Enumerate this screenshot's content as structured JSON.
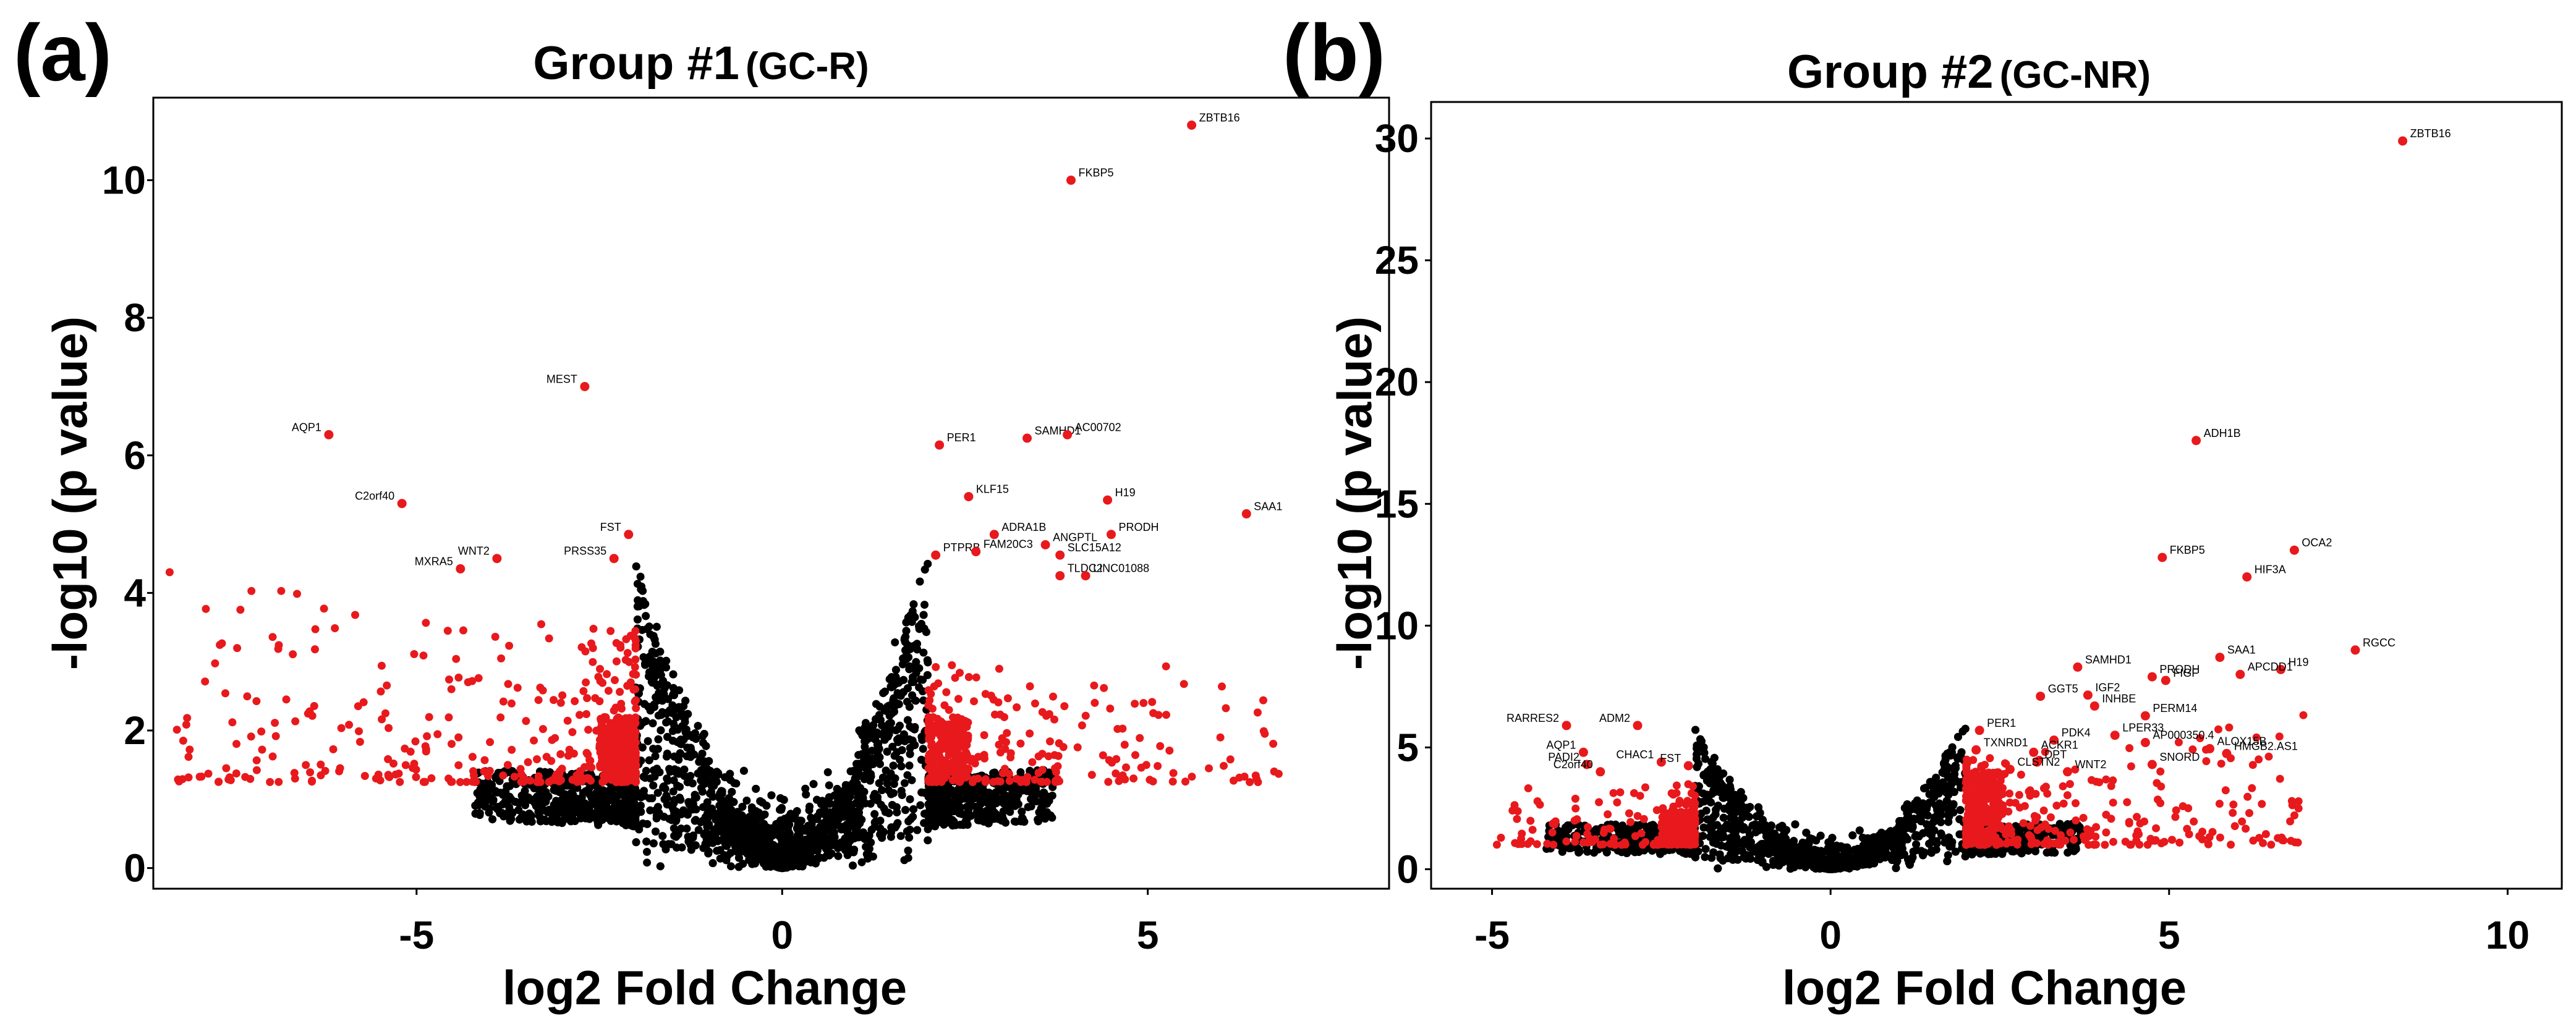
{
  "chart_data": [
    {
      "type": "scatter",
      "panel_label": "(a)",
      "title": "Group #1",
      "title_suffix": "(GC-R)",
      "xlabel": "log2 Fold Change",
      "ylabel": "-log10 (p value)",
      "xlim": [
        -8.6,
        8.3
      ],
      "ylim": [
        -0.3,
        11.2
      ],
      "xticks": [
        -5,
        0,
        5
      ],
      "yticks": [
        0,
        2,
        4,
        6,
        8,
        10
      ],
      "grid": false,
      "colors": {
        "significant": "#e8191c",
        "not_significant": "#000000"
      },
      "fc_threshold": 2,
      "labeled_genes": [
        {
          "label": "ZBTB16",
          "x": 5.6,
          "y": 10.8
        },
        {
          "label": "FKBP5",
          "x": 3.95,
          "y": 10.0
        },
        {
          "label": "MEST",
          "x": -2.7,
          "y": 7.0
        },
        {
          "label": "AQP1",
          "x": -6.2,
          "y": 6.3
        },
        {
          "label": "C2orf40",
          "x": -5.2,
          "y": 5.3
        },
        {
          "label": "PER1",
          "x": 2.15,
          "y": 6.15
        },
        {
          "label": "SAMHD1",
          "x": 3.35,
          "y": 6.25
        },
        {
          "label": "AC00702",
          "x": 3.9,
          "y": 6.3
        },
        {
          "label": "KLF15",
          "x": 2.55,
          "y": 5.4
        },
        {
          "label": "H19",
          "x": 4.45,
          "y": 5.35
        },
        {
          "label": "SAA1",
          "x": 6.35,
          "y": 5.15
        },
        {
          "label": "FST",
          "x": -2.1,
          "y": 4.85
        },
        {
          "label": "PRODH",
          "x": 4.5,
          "y": 4.85
        },
        {
          "label": "ADRA1B",
          "x": 2.9,
          "y": 4.85
        },
        {
          "label": "WNT2",
          "x": -3.9,
          "y": 4.5
        },
        {
          "label": "MXRA5",
          "x": -4.4,
          "y": 4.35
        },
        {
          "label": "PRSS35",
          "x": -2.3,
          "y": 4.5
        },
        {
          "label": "PTPRB",
          "x": 2.1,
          "y": 4.55
        },
        {
          "label": "FAM20C3",
          "x": 2.65,
          "y": 4.6
        },
        {
          "label": "ANGPTL",
          "x": 3.6,
          "y": 4.7
        },
        {
          "label": "SLC15A12",
          "x": 3.8,
          "y": 4.55
        },
        {
          "label": "TLDC2",
          "x": 3.8,
          "y": 4.25
        },
        {
          "label": "LINC01088",
          "x": 4.15,
          "y": 4.25
        }
      ]
    },
    {
      "type": "scatter",
      "panel_label": "(b)",
      "title": "Group #2",
      "title_suffix": "(GC-NR)",
      "xlabel": "log2 Fold Change",
      "ylabel": "-log10 (p value)",
      "xlim": [
        -5.9,
        10.8
      ],
      "ylim": [
        -0.8,
        31.5
      ],
      "xticks": [
        -5,
        0,
        5,
        10
      ],
      "yticks": [
        0,
        5,
        10,
        15,
        20,
        25,
        30
      ],
      "grid": false,
      "colors": {
        "significant": "#e8191c",
        "not_significant": "#000000"
      },
      "fc_threshold": 2,
      "labeled_genes": [
        {
          "label": "ZBTB16",
          "x": 8.45,
          "y": 29.9
        },
        {
          "label": "ADH1B",
          "x": 5.4,
          "y": 17.6
        },
        {
          "label": "OCA2",
          "x": 6.85,
          "y": 13.1
        },
        {
          "label": "FKBP5",
          "x": 4.9,
          "y": 12.8
        },
        {
          "label": "HIF3A",
          "x": 6.15,
          "y": 12.0
        },
        {
          "label": "RGCC",
          "x": 7.75,
          "y": 9.0
        },
        {
          "label": "SAA1",
          "x": 5.75,
          "y": 8.7
        },
        {
          "label": "H19",
          "x": 6.65,
          "y": 8.2
        },
        {
          "label": "APCDD1",
          "x": 6.05,
          "y": 8.0
        },
        {
          "label": "SAMHD1",
          "x": 3.65,
          "y": 8.3
        },
        {
          "label": "PRODH",
          "x": 4.75,
          "y": 7.9
        },
        {
          "label": "FIGF",
          "x": 4.95,
          "y": 7.75
        },
        {
          "label": "GGT5",
          "x": 3.1,
          "y": 7.1
        },
        {
          "label": "IGF2",
          "x": 3.8,
          "y": 7.15
        },
        {
          "label": "INHBE",
          "x": 3.9,
          "y": 6.7
        },
        {
          "label": "PERM14",
          "x": 4.65,
          "y": 6.3
        },
        {
          "label": "RARRES2",
          "x": -3.9,
          "y": 5.9
        },
        {
          "label": "ADM2",
          "x": -2.85,
          "y": 5.9
        },
        {
          "label": "PER1",
          "x": 2.2,
          "y": 5.7
        },
        {
          "label": "PDK4",
          "x": 3.3,
          "y": 5.3
        },
        {
          "label": "LPER33",
          "x": 4.2,
          "y": 5.5
        },
        {
          "label": "AP000350.4",
          "x": 4.65,
          "y": 5.2
        },
        {
          "label": "TXNRD1",
          "x": 2.15,
          "y": 4.9
        },
        {
          "label": "ACKR1",
          "x": 3.0,
          "y": 4.8
        },
        {
          "label": "DPT",
          "x": 3.05,
          "y": 4.4
        },
        {
          "label": "ALOX15B",
          "x": 5.6,
          "y": 4.95
        },
        {
          "label": "HMGB2.AS1",
          "x": 5.85,
          "y": 4.75
        },
        {
          "label": "AQP1",
          "x": -3.65,
          "y": 4.8
        },
        {
          "label": "CHAC1",
          "x": -2.5,
          "y": 4.4
        },
        {
          "label": "FST",
          "x": -2.1,
          "y": 4.25
        },
        {
          "label": "PADI2",
          "x": -3.6,
          "y": 4.3
        },
        {
          "label": "C2orf40",
          "x": -3.4,
          "y": 4.0
        },
        {
          "label": "CLSTN2",
          "x": 2.65,
          "y": 4.1
        },
        {
          "label": "WNT2",
          "x": 3.5,
          "y": 4.0
        },
        {
          "label": "SNORD",
          "x": 4.75,
          "y": 4.3
        }
      ]
    }
  ]
}
